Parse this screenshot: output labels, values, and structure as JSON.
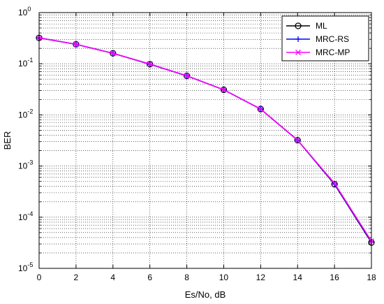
{
  "chart_data": {
    "type": "line",
    "title": "",
    "xlabel": "Es/No, dB",
    "ylabel": "BER",
    "xlim": [
      0,
      18
    ],
    "ylim": [
      1e-05,
      1
    ],
    "yscale": "log",
    "grid": true,
    "grid_style": "dotted",
    "minor_grid": true,
    "legend_position": "top-right",
    "x_ticks": [
      "0",
      "2",
      "4",
      "6",
      "8",
      "10",
      "12",
      "14",
      "16",
      "18"
    ],
    "y_ticks": [
      {
        "base": "10",
        "exp": "0"
      },
      {
        "base": "10",
        "exp": "-1"
      },
      {
        "base": "10",
        "exp": "-2"
      },
      {
        "base": "10",
        "exp": "-3"
      },
      {
        "base": "10",
        "exp": "-4"
      },
      {
        "base": "10",
        "exp": "-5"
      }
    ],
    "x": [
      0,
      2,
      4,
      6,
      8,
      10,
      12,
      14,
      16,
      18
    ],
    "series": [
      {
        "name": "ML",
        "color": "#000000",
        "marker": "circle",
        "values": [
          0.32,
          0.24,
          0.16,
          0.098,
          0.058,
          0.031,
          0.013,
          0.0032,
          0.00044,
          3.2e-05
        ]
      },
      {
        "name": "MRC-RS",
        "color": "#0000ff",
        "marker": "plus",
        "values": [
          0.32,
          0.24,
          0.16,
          0.098,
          0.058,
          0.031,
          0.013,
          0.0032,
          0.00045,
          3.3e-05
        ]
      },
      {
        "name": "MRC-MP",
        "color": "#ff00ff",
        "marker": "x",
        "values": [
          0.32,
          0.24,
          0.16,
          0.099,
          0.058,
          0.031,
          0.013,
          0.0032,
          0.00046,
          3.4e-05
        ]
      }
    ]
  }
}
